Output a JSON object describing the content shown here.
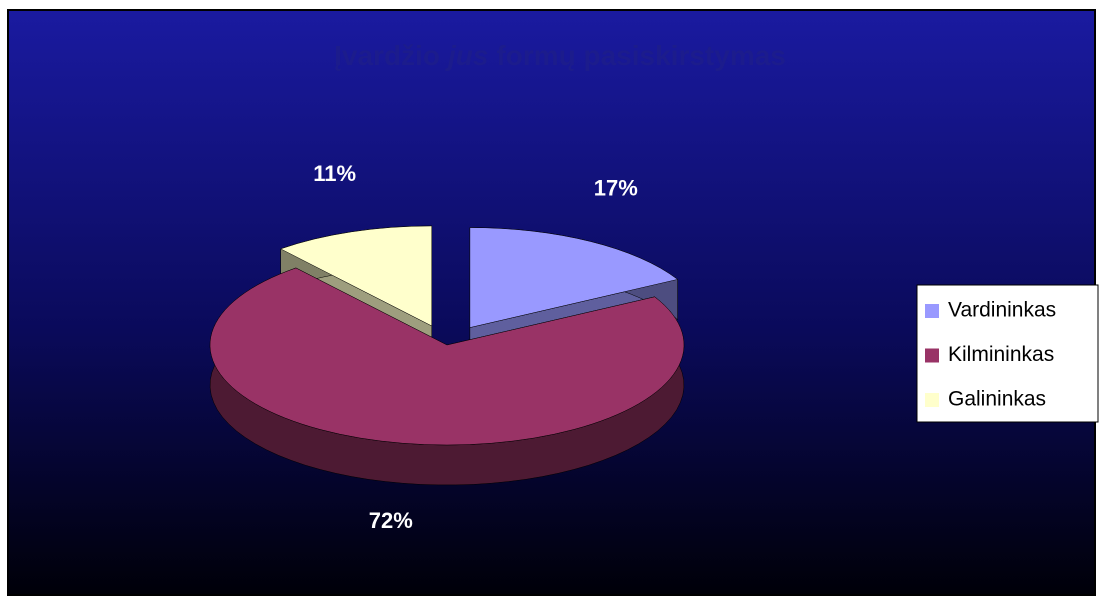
{
  "chart_data": {
    "type": "pie3d",
    "title": [
      {
        "text": "Įvardžio"
      },
      {
        "text": "jus",
        "italic": true
      },
      {
        "text": "formų pasiskirstymas"
      }
    ],
    "categories": [
      "Vardininkas",
      "Kilmininkas",
      "Galininkas"
    ],
    "values": [
      17,
      72,
      11
    ],
    "value_labels": [
      "17%",
      "72%",
      "11%"
    ],
    "colors": [
      "#9999ff",
      "#993366",
      "#ffffcc"
    ],
    "exploded": [
      true,
      false,
      true
    ],
    "legend": "right"
  }
}
